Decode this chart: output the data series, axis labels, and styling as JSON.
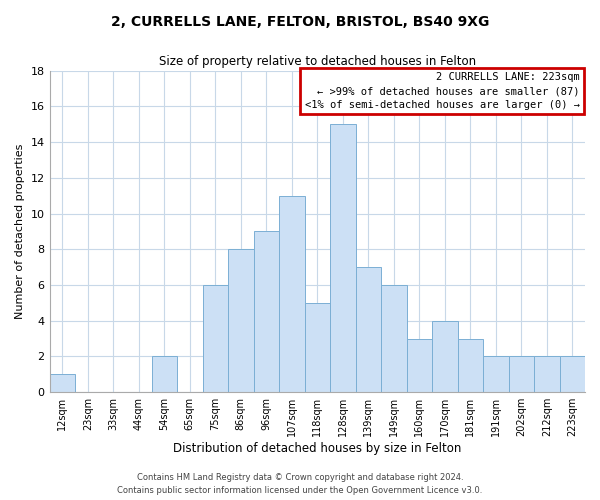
{
  "title": "2, CURRELLS LANE, FELTON, BRISTOL, BS40 9XG",
  "subtitle": "Size of property relative to detached houses in Felton",
  "xlabel": "Distribution of detached houses by size in Felton",
  "ylabel": "Number of detached properties",
  "bar_labels": [
    "12sqm",
    "23sqm",
    "33sqm",
    "44sqm",
    "54sqm",
    "65sqm",
    "75sqm",
    "86sqm",
    "96sqm",
    "107sqm",
    "118sqm",
    "128sqm",
    "139sqm",
    "149sqm",
    "160sqm",
    "170sqm",
    "181sqm",
    "191sqm",
    "202sqm",
    "212sqm",
    "223sqm"
  ],
  "bar_values": [
    1,
    0,
    0,
    0,
    2,
    0,
    6,
    8,
    9,
    11,
    5,
    15,
    7,
    6,
    3,
    4,
    3,
    2,
    2,
    2,
    2
  ],
  "bar_color": "#cce0f5",
  "bar_edge_color": "#7bafd4",
  "box_line_color": "#cc0000",
  "ylim": [
    0,
    18
  ],
  "yticks": [
    0,
    2,
    4,
    6,
    8,
    10,
    12,
    14,
    16,
    18
  ],
  "legend_title": "2 CURRELLS LANE: 223sqm",
  "legend_line1": "← >99% of detached houses are smaller (87)",
  "legend_line2": "<1% of semi-detached houses are larger (0) →",
  "footer_line1": "Contains HM Land Registry data © Crown copyright and database right 2024.",
  "footer_line2": "Contains public sector information licensed under the Open Government Licence v3.0.",
  "background_color": "#ffffff",
  "grid_color": "#c8d8e8"
}
